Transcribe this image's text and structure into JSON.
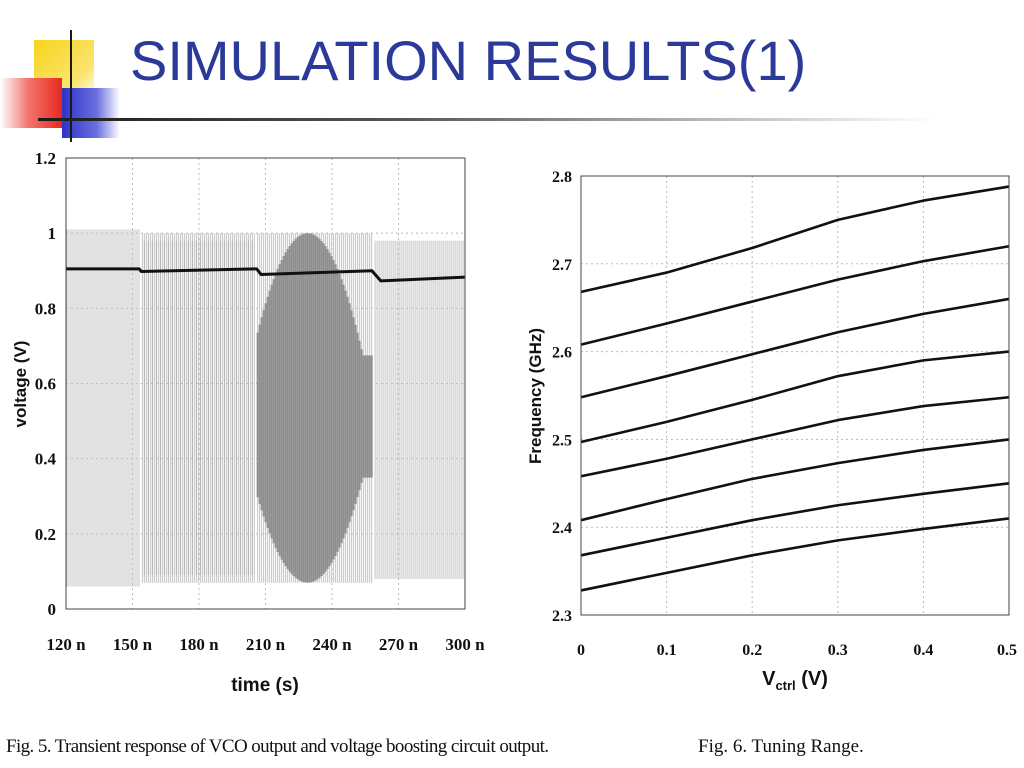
{
  "slide": {
    "title": "SIMULATION RESULTS(1)",
    "caption_left": "Fig. 5.   Transient response of VCO output and voltage boosting circuit output.",
    "caption_right": "Fig. 6.    Tuning Range."
  },
  "colors": {
    "title": "#2b3a99",
    "deco_yellow": "#f7d31b",
    "deco_red": "#e8281e",
    "deco_blue": "#2f34c8",
    "vco_light": "#c4c4c4",
    "vco_dark": "#8e8e8e",
    "boost_line": "#111111"
  },
  "chart_data": [
    {
      "type": "line",
      "xlabel": "time (s)",
      "ylabel": "voltage (V)",
      "xlim": [
        120,
        300
      ],
      "ylim": [
        0,
        1.2
      ],
      "x_ticks": [
        {
          "value": 120,
          "label": "120 n"
        },
        {
          "value": 150,
          "label": "150 n"
        },
        {
          "value": 180,
          "label": "180 n"
        },
        {
          "value": 210,
          "label": "210 n"
        },
        {
          "value": 240,
          "label": "240 n"
        },
        {
          "value": 270,
          "label": "270 n"
        },
        {
          "value": 300,
          "label": "300 n"
        }
      ],
      "y_ticks": [
        {
          "value": 0,
          "label": "0"
        },
        {
          "value": 0.2,
          "label": "0.2"
        },
        {
          "value": 0.4,
          "label": "0.4"
        },
        {
          "value": 0.6,
          "label": "0.6"
        },
        {
          "value": 0.8,
          "label": "0.8"
        },
        {
          "value": 1.0,
          "label": "1"
        },
        {
          "value": 1.2,
          "label": "1.2"
        }
      ],
      "grid": true,
      "vco_envelope": [
        {
          "x0": 120,
          "x1": 154,
          "high": 1.01,
          "low": 0.06
        },
        {
          "x0": 154,
          "x1": 206,
          "high": 1.0,
          "low": 0.07
        },
        {
          "x0": 206,
          "x1": 259,
          "high": 1.0,
          "low": 0.07,
          "dense_center": 229,
          "dense_halfwidth": 25
        },
        {
          "x0": 259,
          "x1": 300,
          "high": 0.98,
          "low": 0.08
        }
      ],
      "series": [
        {
          "x": [
            120,
            153,
            154,
            206,
            208,
            258,
            262,
            270,
            300
          ],
          "y": [
            0.905,
            0.905,
            0.898,
            0.905,
            0.89,
            0.9,
            0.873,
            0.875,
            0.883
          ]
        }
      ]
    },
    {
      "type": "line",
      "xlabel": "V",
      "xlabel_sub": "ctrl",
      "xlabel_tail": " (V)",
      "ylabel": "Frequency (GHz)",
      "xlim": [
        0,
        0.5
      ],
      "ylim": [
        2.3,
        2.8
      ],
      "x_ticks": [
        {
          "value": 0,
          "label": "0"
        },
        {
          "value": 0.1,
          "label": "0.1"
        },
        {
          "value": 0.2,
          "label": "0.2"
        },
        {
          "value": 0.3,
          "label": "0.3"
        },
        {
          "value": 0.4,
          "label": "0.4"
        },
        {
          "value": 0.5,
          "label": "0.5"
        }
      ],
      "y_ticks": [
        {
          "value": 2.3,
          "label": "2.3"
        },
        {
          "value": 2.4,
          "label": "2.4"
        },
        {
          "value": 2.5,
          "label": "2.5"
        },
        {
          "value": 2.6,
          "label": "2.6"
        },
        {
          "value": 2.7,
          "label": "2.7"
        },
        {
          "value": 2.8,
          "label": "2.8"
        }
      ],
      "grid": true,
      "x": [
        0,
        0.1,
        0.2,
        0.3,
        0.4,
        0.5
      ],
      "series": [
        {
          "values": [
            2.668,
            2.69,
            2.718,
            2.75,
            2.772,
            2.788
          ]
        },
        {
          "values": [
            2.608,
            2.632,
            2.657,
            2.682,
            2.703,
            2.72
          ]
        },
        {
          "values": [
            2.548,
            2.572,
            2.597,
            2.622,
            2.643,
            2.66
          ]
        },
        {
          "values": [
            2.497,
            2.52,
            2.545,
            2.572,
            2.59,
            2.6
          ]
        },
        {
          "values": [
            2.458,
            2.478,
            2.5,
            2.522,
            2.538,
            2.548
          ]
        },
        {
          "values": [
            2.408,
            2.432,
            2.455,
            2.473,
            2.488,
            2.5
          ]
        },
        {
          "values": [
            2.368,
            2.388,
            2.408,
            2.425,
            2.438,
            2.45
          ]
        },
        {
          "values": [
            2.328,
            2.348,
            2.368,
            2.385,
            2.398,
            2.41
          ]
        }
      ]
    }
  ]
}
